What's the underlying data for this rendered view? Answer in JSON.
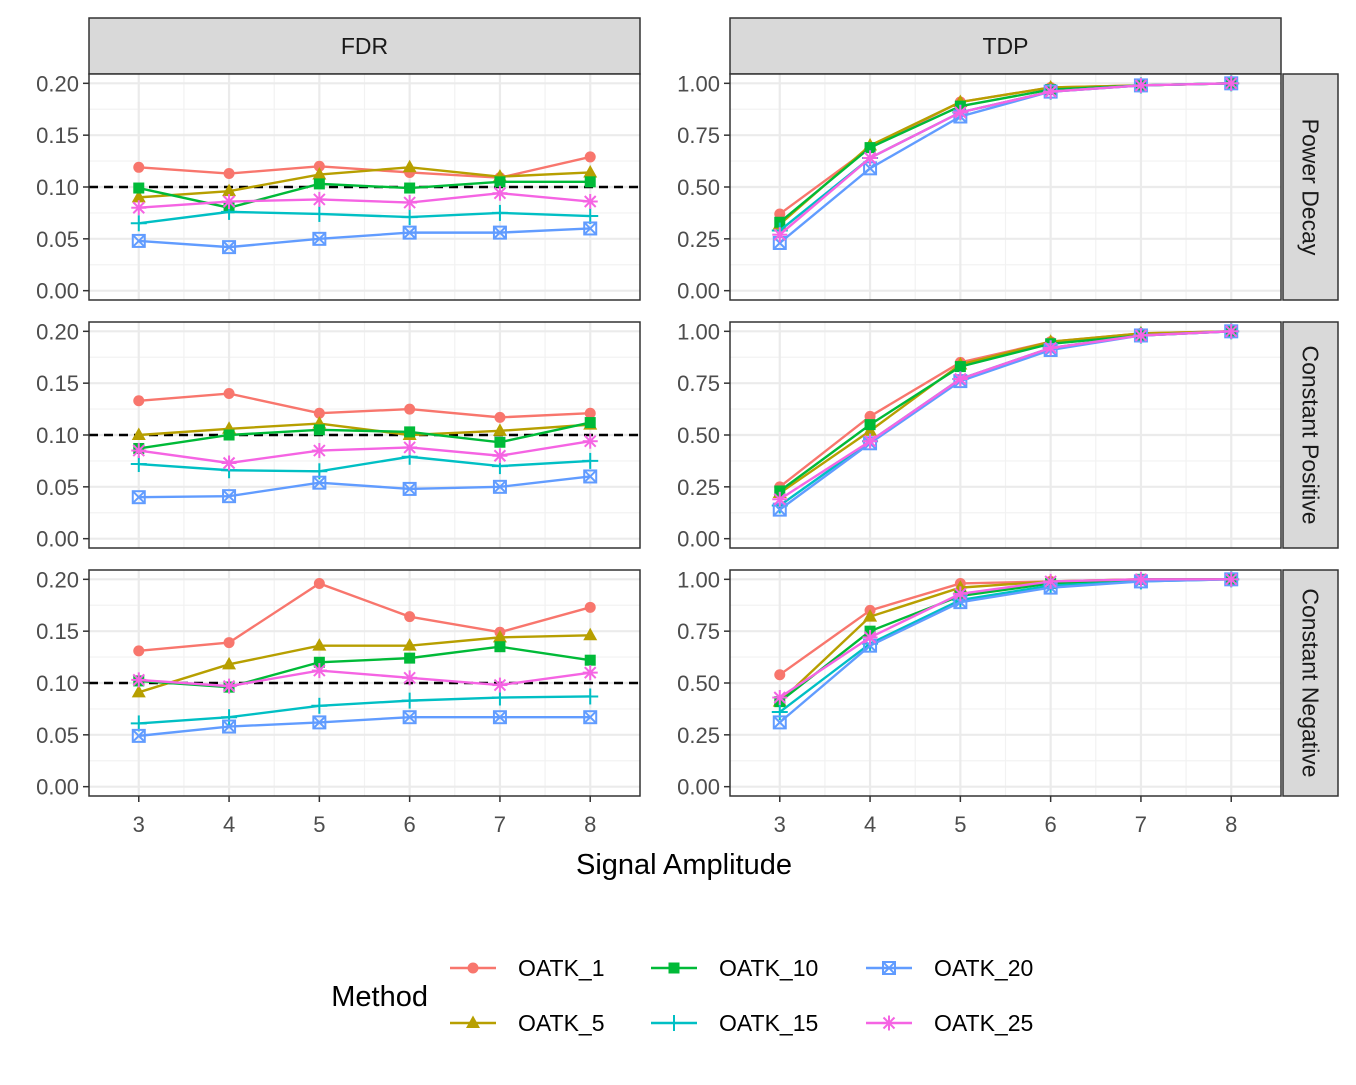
{
  "chart_data": {
    "type": "line",
    "facet_columns": [
      "FDR",
      "TDP"
    ],
    "facet_rows": [
      "Power Decay",
      "Constant Positive",
      "Constant Negative"
    ],
    "x": [
      3,
      4,
      5,
      6,
      7,
      8
    ],
    "xlabel": "Signal Amplitude",
    "x_ticks": [
      "3",
      "4",
      "5",
      "6",
      "7",
      "8"
    ],
    "column_settings": {
      "FDR": {
        "ylim": [
          0,
          0.2
        ],
        "y_ticks": [
          "0.00",
          "0.05",
          "0.10",
          "0.15",
          "0.20"
        ],
        "reference_line": 0.1
      },
      "TDP": {
        "ylim": [
          0,
          1
        ],
        "y_ticks": [
          "0.00",
          "0.25",
          "0.50",
          "0.75",
          "1.00"
        ]
      }
    },
    "legend": {
      "title": "Method",
      "position": "bottom"
    },
    "methods": [
      {
        "name": "OATK_1",
        "color": "#F8766D",
        "shape": "circle"
      },
      {
        "name": "OATK_5",
        "color": "#B79F00",
        "shape": "triangle"
      },
      {
        "name": "OATK_10",
        "color": "#00BA38",
        "shape": "square"
      },
      {
        "name": "OATK_15",
        "color": "#00BFC4",
        "shape": "plus"
      },
      {
        "name": "OATK_20",
        "color": "#619CFF",
        "shape": "boxed-x"
      },
      {
        "name": "OATK_25",
        "color": "#F564E3",
        "shape": "asterisk"
      }
    ],
    "panels": [
      {
        "row": "Power Decay",
        "column": "FDR",
        "series": [
          {
            "name": "OATK_1",
            "values": [
              0.119,
              0.113,
              0.12,
              0.114,
              0.109,
              0.129
            ]
          },
          {
            "name": "OATK_5",
            "values": [
              0.09,
              0.096,
              0.112,
              0.119,
              0.11,
              0.114
            ]
          },
          {
            "name": "OATK_10",
            "values": [
              0.099,
              0.08,
              0.103,
              0.099,
              0.105,
              0.105
            ]
          },
          {
            "name": "OATK_15",
            "values": [
              0.065,
              0.076,
              0.074,
              0.071,
              0.075,
              0.072
            ]
          },
          {
            "name": "OATK_20",
            "values": [
              0.048,
              0.042,
              0.05,
              0.056,
              0.056,
              0.06
            ]
          },
          {
            "name": "OATK_25",
            "values": [
              0.08,
              0.086,
              0.088,
              0.085,
              0.094,
              0.086
            ]
          }
        ]
      },
      {
        "row": "Power Decay",
        "column": "TDP",
        "series": [
          {
            "name": "OATK_1",
            "values": [
              0.37,
              0.69,
              0.91,
              0.98,
              0.99,
              1.0
            ]
          },
          {
            "name": "OATK_5",
            "values": [
              0.32,
              0.7,
              0.91,
              0.98,
              0.99,
              1.0
            ]
          },
          {
            "name": "OATK_10",
            "values": [
              0.33,
              0.69,
              0.89,
              0.97,
              0.99,
              1.0
            ]
          },
          {
            "name": "OATK_15",
            "values": [
              0.29,
              0.64,
              0.86,
              0.96,
              0.99,
              1.0
            ]
          },
          {
            "name": "OATK_20",
            "values": [
              0.23,
              0.59,
              0.84,
              0.96,
              0.99,
              1.0
            ]
          },
          {
            "name": "OATK_25",
            "values": [
              0.27,
              0.64,
              0.86,
              0.96,
              0.99,
              1.0
            ]
          }
        ]
      },
      {
        "row": "Constant Positive",
        "column": "FDR",
        "series": [
          {
            "name": "OATK_1",
            "values": [
              0.133,
              0.14,
              0.121,
              0.125,
              0.117,
              0.121
            ]
          },
          {
            "name": "OATK_5",
            "values": [
              0.1,
              0.106,
              0.111,
              0.1,
              0.104,
              0.11
            ]
          },
          {
            "name": "OATK_10",
            "values": [
              0.087,
              0.1,
              0.105,
              0.103,
              0.093,
              0.112
            ]
          },
          {
            "name": "OATK_15",
            "values": [
              0.072,
              0.066,
              0.065,
              0.079,
              0.07,
              0.075
            ]
          },
          {
            "name": "OATK_20",
            "values": [
              0.04,
              0.041,
              0.054,
              0.048,
              0.05,
              0.06
            ]
          },
          {
            "name": "OATK_25",
            "values": [
              0.085,
              0.073,
              0.085,
              0.088,
              0.08,
              0.094
            ]
          }
        ]
      },
      {
        "row": "Constant Positive",
        "column": "TDP",
        "series": [
          {
            "name": "OATK_1",
            "values": [
              0.25,
              0.59,
              0.85,
              0.95,
              0.99,
              1.0
            ]
          },
          {
            "name": "OATK_5",
            "values": [
              0.22,
              0.52,
              0.84,
              0.95,
              0.99,
              1.0
            ]
          },
          {
            "name": "OATK_10",
            "values": [
              0.23,
              0.55,
              0.83,
              0.94,
              0.98,
              1.0
            ]
          },
          {
            "name": "OATK_15",
            "values": [
              0.16,
              0.47,
              0.77,
              0.92,
              0.98,
              1.0
            ]
          },
          {
            "name": "OATK_20",
            "values": [
              0.14,
              0.46,
              0.76,
              0.91,
              0.98,
              1.0
            ]
          },
          {
            "name": "OATK_25",
            "values": [
              0.19,
              0.47,
              0.77,
              0.92,
              0.98,
              1.0
            ]
          }
        ]
      },
      {
        "row": "Constant Negative",
        "column": "FDR",
        "series": [
          {
            "name": "OATK_1",
            "values": [
              0.131,
              0.139,
              0.196,
              0.164,
              0.149,
              0.173
            ]
          },
          {
            "name": "OATK_5",
            "values": [
              0.091,
              0.118,
              0.136,
              0.136,
              0.144,
              0.146
            ]
          },
          {
            "name": "OATK_10",
            "values": [
              0.102,
              0.096,
              0.12,
              0.124,
              0.135,
              0.122
            ]
          },
          {
            "name": "OATK_15",
            "values": [
              0.061,
              0.067,
              0.078,
              0.083,
              0.086,
              0.087
            ]
          },
          {
            "name": "OATK_20",
            "values": [
              0.049,
              0.058,
              0.062,
              0.067,
              0.067,
              0.067
            ]
          },
          {
            "name": "OATK_25",
            "values": [
              0.103,
              0.097,
              0.112,
              0.105,
              0.098,
              0.11
            ]
          }
        ]
      },
      {
        "row": "Constant Negative",
        "column": "TDP",
        "series": [
          {
            "name": "OATK_1",
            "values": [
              0.54,
              0.85,
              0.98,
              0.99,
              1.0,
              1.0
            ]
          },
          {
            "name": "OATK_5",
            "values": [
              0.41,
              0.82,
              0.96,
              0.99,
              1.0,
              1.0
            ]
          },
          {
            "name": "OATK_10",
            "values": [
              0.41,
              0.75,
              0.92,
              0.98,
              1.0,
              1.0
            ]
          },
          {
            "name": "OATK_15",
            "values": [
              0.36,
              0.69,
              0.9,
              0.97,
              0.99,
              1.0
            ]
          },
          {
            "name": "OATK_20",
            "values": [
              0.31,
              0.68,
              0.89,
              0.96,
              0.99,
              1.0
            ]
          },
          {
            "name": "OATK_25",
            "values": [
              0.43,
              0.72,
              0.93,
              0.99,
              1.0,
              1.0
            ]
          }
        ]
      }
    ]
  }
}
